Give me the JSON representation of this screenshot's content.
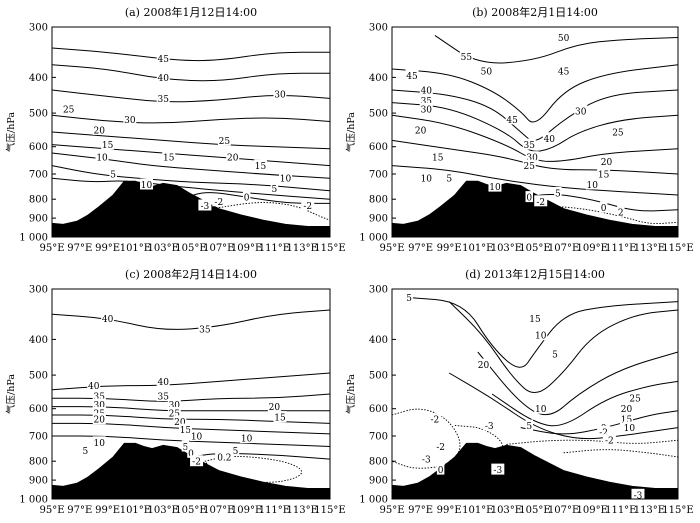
{
  "chart_data": [
    {
      "type": "contour",
      "title": "(a) 2008年1月12日14:00",
      "ylabel": "气压/hPa",
      "x_ticks": [
        "95°E",
        "97°E",
        "99°E",
        "101°E",
        "103°E",
        "105°E",
        "107°E",
        "109°E",
        "111°E",
        "113°E",
        "115°E"
      ],
      "y_ticks": [
        "300",
        "400",
        "500",
        "600",
        "700",
        "800",
        "900",
        "1 000"
      ],
      "xlim": [
        95,
        115
      ],
      "ylim": [
        1000,
        300
      ],
      "contour_labels": [
        "45",
        "40",
        "35",
        "30",
        "30",
        "25",
        "20",
        "25",
        "15",
        "20",
        "10",
        "15",
        "5",
        "10",
        "15",
        "10",
        "5",
        "0",
        "-2",
        "-3",
        "-2"
      ]
    },
    {
      "type": "contour",
      "title": "(b) 2008年2月1日14:00",
      "ylabel": "气压/hPa",
      "x_ticks": [
        "95°E",
        "97°E",
        "99°E",
        "101°E",
        "103°E",
        "105°E",
        "107°E",
        "109°E",
        "111°E",
        "113°E",
        "115°E"
      ],
      "y_ticks": [
        "300",
        "400",
        "500",
        "600",
        "700",
        "800",
        "900",
        "1 000"
      ],
      "xlim": [
        95,
        115
      ],
      "ylim": [
        1000,
        300
      ],
      "contour_labels": [
        "55",
        "50",
        "50",
        "45",
        "40",
        "35",
        "30",
        "45",
        "45",
        "40",
        "25",
        "30",
        "20",
        "35",
        "30",
        "25",
        "15",
        "20",
        "10",
        "5",
        "15",
        "10",
        "10",
        "5",
        "0",
        "-2",
        "0",
        "2"
      ]
    },
    {
      "type": "contour",
      "title": "(c) 2008年2月14日14:00",
      "ylabel": "气压/hPa",
      "x_ticks": [
        "95°E",
        "97°E",
        "99°E",
        "101°E",
        "103°E",
        "105°E",
        "107°E",
        "109°E",
        "111°E",
        "113°E",
        "115°E"
      ],
      "y_ticks": [
        "300",
        "400",
        "500",
        "600",
        "700",
        "800",
        "900",
        "1 000"
      ],
      "xlim": [
        95,
        115
      ],
      "ylim": [
        1000,
        300
      ],
      "contour_labels": [
        "40",
        "35",
        "40",
        "40",
        "35",
        "35",
        "30",
        "30",
        "25",
        "25",
        "20",
        "20",
        "20",
        "15",
        "15",
        "10",
        "10",
        "10",
        "5",
        "5",
        "5",
        "0",
        "-2",
        "0.2"
      ]
    },
    {
      "type": "contour",
      "title": "(d) 2013年12月15日14:00",
      "ylabel": "气压/hPa",
      "x_ticks": [
        "95°E",
        "97°E",
        "99°E",
        "101°E",
        "103°E",
        "105°E",
        "107°E",
        "109°E",
        "111°E",
        "113°E",
        "115°E"
      ],
      "y_ticks": [
        "300",
        "400",
        "500",
        "600",
        "700",
        "800",
        "900",
        "1 000"
      ],
      "xlim": [
        95,
        115
      ],
      "ylim": [
        1000,
        300
      ],
      "contour_labels": [
        "5",
        "15",
        "10",
        "20",
        "5",
        "25",
        "20",
        "15",
        "10",
        "10",
        "5",
        "0",
        "-2",
        "-3",
        "-2",
        "-3",
        "-3",
        "0",
        "-2",
        "-2",
        "-3"
      ]
    }
  ]
}
